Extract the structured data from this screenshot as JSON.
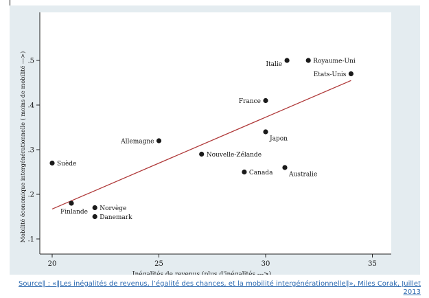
{
  "colors": {
    "frame_background": "#e4ecf0",
    "plot_background": "#ffffff",
    "point": "#1a1a1a",
    "fit_line": "#b03a3a",
    "link": "#2d6ab0"
  },
  "chart_data": {
    "type": "scatter",
    "title": "",
    "xlabel": "Inégalités de revenus (plus d'inégalités --->)",
    "ylabel": "Mobilité économique intergénérationnelle ( moins de mobilité --->)",
    "xlim": [
      20,
      35
    ],
    "ylim": [
      0.1,
      0.55
    ],
    "xticks": [
      20,
      25,
      30,
      35
    ],
    "xtick_labels": [
      "20",
      "25",
      "30",
      "35"
    ],
    "yticks": [
      0.1,
      0.2,
      0.3,
      0.4,
      0.5
    ],
    "ytick_labels": [
      ".1",
      ".2",
      ".3",
      ".4",
      ".5"
    ],
    "grid": false,
    "points": [
      {
        "label": "Suède",
        "x": 20,
        "y": 0.27,
        "label_side": "right"
      },
      {
        "label": "Finlande",
        "x": 20.9,
        "y": 0.18,
        "label_side": "below"
      },
      {
        "label": "Norvège",
        "x": 22,
        "y": 0.17,
        "label_side": "right"
      },
      {
        "label": "Danemark",
        "x": 22,
        "y": 0.15,
        "label_side": "right"
      },
      {
        "label": "Allemagne",
        "x": 25,
        "y": 0.32,
        "label_side": "left"
      },
      {
        "label": "Nouvelle-Zélande",
        "x": 27,
        "y": 0.29,
        "label_side": "right"
      },
      {
        "label": "Canada",
        "x": 29,
        "y": 0.25,
        "label_side": "right"
      },
      {
        "label": "France",
        "x": 30,
        "y": 0.41,
        "label_side": "left"
      },
      {
        "label": "Japon",
        "x": 30,
        "y": 0.34,
        "label_side": "below-right"
      },
      {
        "label": "Australie",
        "x": 30.9,
        "y": 0.26,
        "label_side": "below-right"
      },
      {
        "label": "Italie",
        "x": 31,
        "y": 0.5,
        "label_side": "below-left"
      },
      {
        "label": "Royaume-Uni",
        "x": 32,
        "y": 0.5,
        "label_side": "right"
      },
      {
        "label": "Etats-Unis",
        "x": 34,
        "y": 0.47,
        "label_side": "left"
      }
    ],
    "fit_line": {
      "x": [
        20,
        34
      ],
      "y": [
        0.167,
        0.455
      ]
    }
  },
  "caption": {
    "source_link": "Source‖ : «‖Les inégalités de revenus, l’égalité des chances, et la mobilité intergénérationnelle‖», Miles Corak, Juillet 2013"
  }
}
